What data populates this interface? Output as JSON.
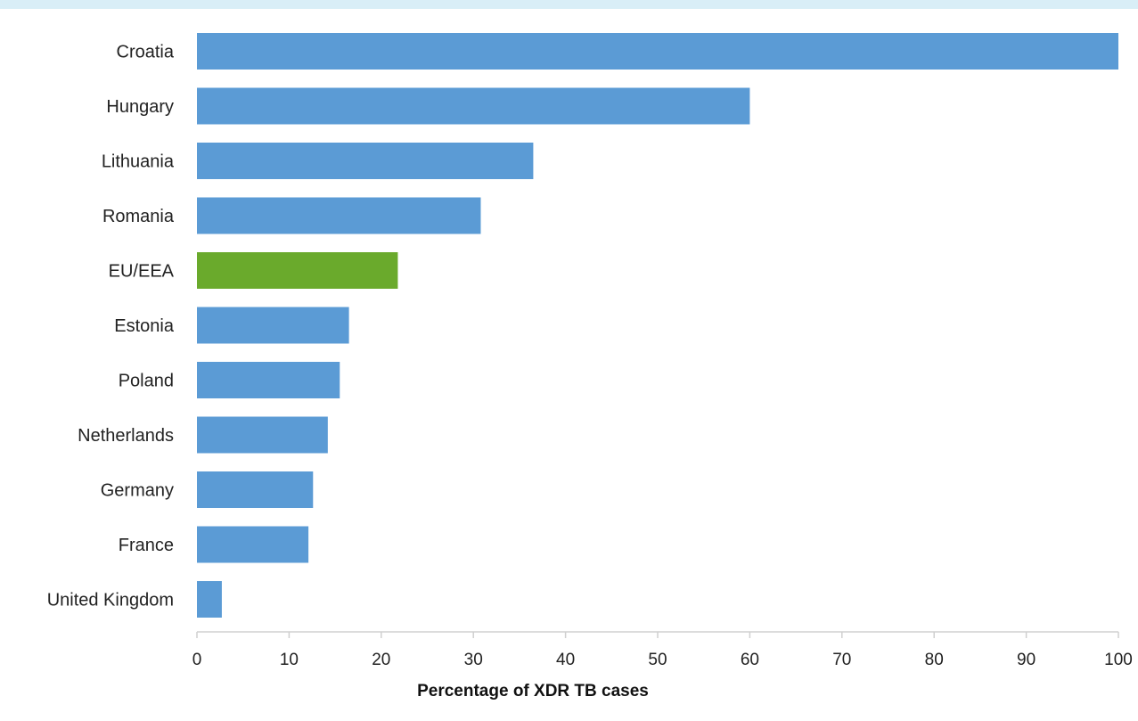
{
  "chart_data": {
    "type": "bar",
    "orientation": "horizontal",
    "title": "",
    "xlabel": "Percentage of XDR TB cases",
    "ylabel": "",
    "xlim": [
      0,
      100
    ],
    "xticks": [
      0,
      10,
      20,
      30,
      40,
      50,
      60,
      70,
      80,
      90,
      100
    ],
    "categories": [
      "Croatia",
      "Hungary",
      "Lithuania",
      "Romania",
      "EU/EEA",
      "Estonia",
      "Poland",
      "Netherlands",
      "Germany",
      "France",
      "United Kingdom"
    ],
    "values": [
      100,
      60,
      36.5,
      30.8,
      21.8,
      16.5,
      15.5,
      14.2,
      12.6,
      12.1,
      2.7
    ],
    "bar_color": "#5b9bd5",
    "highlight_color": "#6aaa2c",
    "highlight_category": "EU/EEA",
    "grid": false,
    "legend": "none"
  }
}
